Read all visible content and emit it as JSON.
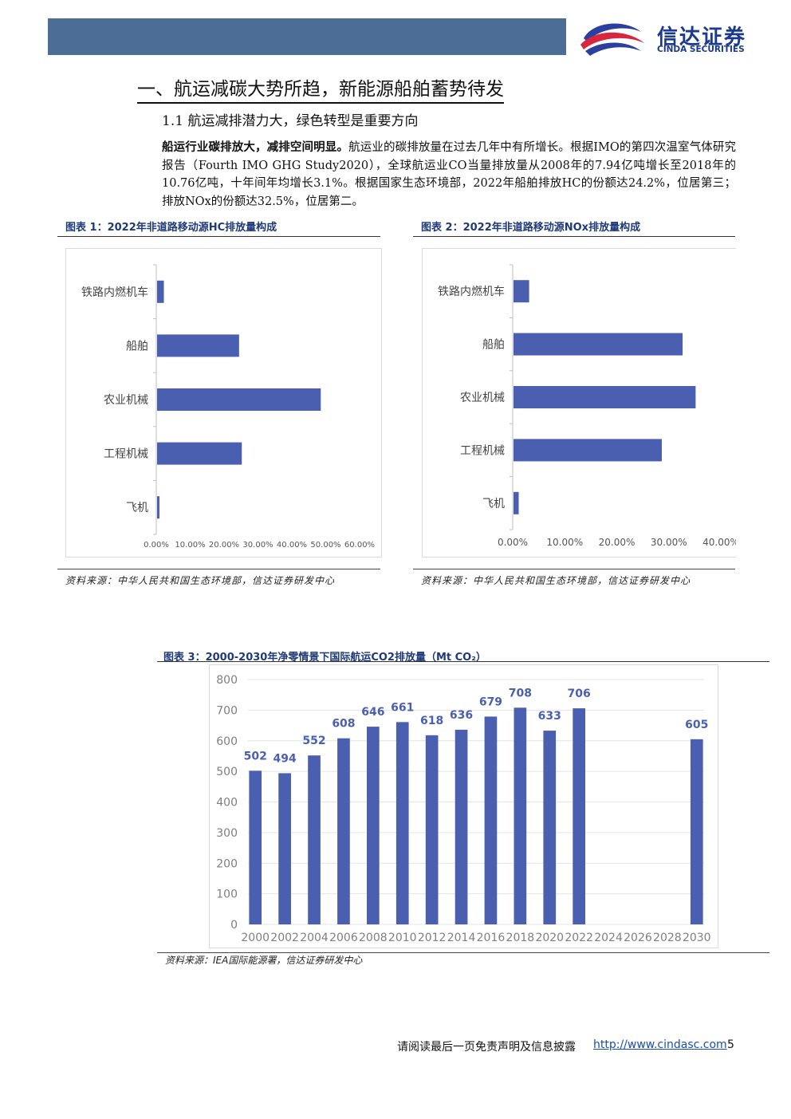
{
  "header": {
    "logo_cn": "信达证券",
    "logo_en": "CINDA SECURITIES"
  },
  "section": {
    "title": "一、航运减碳大势所趋，新能源船舶蓄势待发",
    "subtitle": "1.1 航运减排潜力大，绿色转型是重要方向"
  },
  "paragraph": {
    "lead": "船运行业碳排放大，减排空间明显。",
    "body": "航运业的碳排放量在过去几年中有所增长。根据IMO的第四次温室气体研究报告（Fourth IMO GHG Study2020），全球航运业CO当量排放量从2008年的7.94亿吨增长至2018年的10.76亿吨，十年间年均增长3.1%。根据国家生态环境部，2022年船舶排放HC的份额达24.2%，位居第三；排放NOx的份额达32.5%，位居第二。"
  },
  "figures": {
    "fig1_title": "图表 1：2022年非道路移动源HC排放量构成",
    "fig2_title": "图表 2：2022年非道路移动源NOx排放量构成",
    "fig3_title": "图表 3：2000-2030年净零情景下国际航运CO2排放量（Mt  CO₂）",
    "source_12": "资料来源：中华人民共和国生态环境部，信达证券研发中心",
    "source_3": "资料来源：IEA国际能源署，信达证券研发中心"
  },
  "footer": {
    "disclaimer": "请阅读最后一页免责声明及信息披露",
    "url": "http://www.cindasc.com",
    "page": "5"
  },
  "colors": {
    "bar": "#4a5fb0",
    "header": "#4b6d96",
    "brand": "#1b3a8c"
  },
  "chart_data": [
    {
      "type": "bar",
      "orientation": "horizontal",
      "categories": [
        "铁路内燃机车",
        "船舶",
        "农业机械",
        "工程机械",
        "飞机"
      ],
      "values": [
        2.0,
        24.2,
        48.3,
        25.0,
        0.7
      ],
      "xlim": [
        0,
        60
      ],
      "xticks": [
        "0.00%",
        "10.00%",
        "20.00%",
        "30.00%",
        "40.00%",
        "50.00%",
        "60.00%"
      ]
    },
    {
      "type": "bar",
      "orientation": "horizontal",
      "categories": [
        "铁路内燃机车",
        "船舶",
        "农业机械",
        "工程机械",
        "飞机"
      ],
      "values": [
        3.0,
        32.5,
        35.0,
        28.5,
        1.0
      ],
      "xlim": [
        0,
        40
      ],
      "xticks": [
        "0.00%",
        "10.00%",
        "20.00%",
        "30.00%",
        "40.00%"
      ]
    },
    {
      "type": "bar",
      "categories": [
        "2000",
        "2001",
        "2002",
        "2003",
        "2004",
        "2005",
        "2006",
        "2007",
        "2008",
        "2009",
        "2010",
        "2011",
        "2012",
        "2013",
        "2014",
        "2015",
        "2016",
        "2017",
        "2018",
        "2019",
        "2020",
        "2021",
        "2022",
        "2023",
        "2024",
        "2025",
        "2026",
        "2027",
        "2028",
        "2029",
        "2030"
      ],
      "x": [
        2000,
        2002,
        2004,
        2006,
        2008,
        2010,
        2012,
        2014,
        2016,
        2018,
        2020,
        2022,
        2030
      ],
      "values": [
        502,
        494,
        552,
        608,
        646,
        661,
        618,
        636,
        679,
        708,
        633,
        706,
        605
      ],
      "labels": [
        "502",
        "494",
        "552",
        "608",
        "646",
        "661",
        "618",
        "636",
        "679",
        "708",
        "633",
        "706",
        "605"
      ],
      "xticks": [
        "2000",
        "2002",
        "2004",
        "2006",
        "2008",
        "2010",
        "2012",
        "2014",
        "2016",
        "2018",
        "2020",
        "2022",
        "2024",
        "2026",
        "2028",
        "2030"
      ],
      "yticks": [
        "0",
        "100",
        "200",
        "300",
        "400",
        "500",
        "600",
        "700",
        "800"
      ],
      "ylim": [
        0,
        800
      ]
    }
  ]
}
